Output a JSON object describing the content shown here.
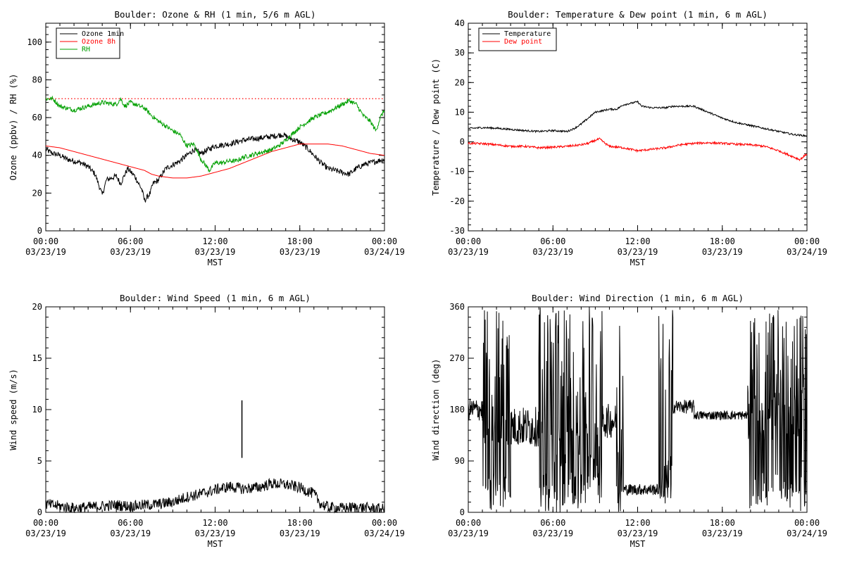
{
  "colors": {
    "ozone_1min": "#000000",
    "ozone_8h": "#ff0000",
    "rh": "#00a000",
    "temperature": "#000000",
    "dew_point": "#ff0000",
    "ref_line": "#ff0000"
  },
  "chart_data": [
    {
      "type": "line",
      "title": "Boulder: Ozone & RH (1 min, 5/6 m AGL)",
      "ylabel": "Ozone (ppbv) / RH (%)",
      "xlabel": "MST",
      "xlim_hours": [
        0,
        24
      ],
      "xticks": [
        [
          "00:00",
          "03/23/19"
        ],
        [
          "06:00",
          "03/23/19"
        ],
        [
          "12:00",
          "03/23/19"
        ],
        [
          "18:00",
          "03/23/19"
        ],
        [
          "00:00",
          "03/24/19"
        ]
      ],
      "ylim": [
        0,
        110
      ],
      "yticks": [
        0,
        20,
        40,
        60,
        80,
        100
      ],
      "reference_line": 70,
      "legend": {
        "placement": "top-left",
        "entries": [
          "Ozone 1min",
          "Ozone 8h",
          "RH"
        ]
      },
      "series": [
        {
          "name": "Ozone 1min",
          "color": "ozone_1min",
          "noise": 1.5,
          "points": [
            [
              0,
              43
            ],
            [
              0.5,
              41
            ],
            [
              1,
              40
            ],
            [
              1.5,
              38
            ],
            [
              2,
              37
            ],
            [
              2.5,
              36
            ],
            [
              3,
              34
            ],
            [
              3.5,
              30
            ],
            [
              4,
              19
            ],
            [
              4.3,
              27
            ],
            [
              5,
              29
            ],
            [
              5.3,
              25
            ],
            [
              5.8,
              33
            ],
            [
              6.3,
              29
            ],
            [
              6.8,
              22
            ],
            [
              7,
              16
            ],
            [
              7.4,
              20
            ],
            [
              7.6,
              25
            ],
            [
              8,
              27
            ],
            [
              8.5,
              33
            ],
            [
              9,
              35
            ],
            [
              9.5,
              37
            ],
            [
              10,
              40
            ],
            [
              10.5,
              43
            ],
            [
              11,
              41
            ],
            [
              11.5,
              43
            ],
            [
              12,
              45
            ],
            [
              13,
              46
            ],
            [
              14,
              48
            ],
            [
              15,
              49
            ],
            [
              16,
              50
            ],
            [
              16.8,
              51
            ],
            [
              17.3,
              49
            ],
            [
              18,
              47
            ],
            [
              18.5,
              44
            ],
            [
              19,
              40
            ],
            [
              19.5,
              36
            ],
            [
              20,
              33
            ],
            [
              20.5,
              32
            ],
            [
              21,
              31
            ],
            [
              21.5,
              30
            ],
            [
              22,
              33
            ],
            [
              22.5,
              35
            ],
            [
              23,
              36
            ],
            [
              23.5,
              37
            ],
            [
              24,
              38
            ]
          ]
        },
        {
          "name": "Ozone 8h",
          "color": "ozone_8h",
          "noise": 0,
          "points": [
            [
              0,
              45
            ],
            [
              1,
              44
            ],
            [
              2,
              42
            ],
            [
              3,
              40
            ],
            [
              4,
              38
            ],
            [
              5,
              36
            ],
            [
              6,
              34
            ],
            [
              7,
              32
            ],
            [
              7.5,
              30
            ],
            [
              8,
              29
            ],
            [
              9,
              28
            ],
            [
              10,
              28
            ],
            [
              11,
              29
            ],
            [
              12,
              31
            ],
            [
              13,
              33
            ],
            [
              14,
              36
            ],
            [
              15,
              39
            ],
            [
              16,
              42
            ],
            [
              17,
              44
            ],
            [
              18,
              46
            ],
            [
              19,
              46
            ],
            [
              20,
              46
            ],
            [
              21,
              45
            ],
            [
              22,
              43
            ],
            [
              23,
              41
            ],
            [
              24,
              40
            ]
          ]
        },
        {
          "name": "RH",
          "color": "rh",
          "noise": 1.2,
          "points": [
            [
              0,
              70
            ],
            [
              0.5,
              70
            ],
            [
              1,
              66
            ],
            [
              2,
              64
            ],
            [
              3,
              66
            ],
            [
              4,
              68
            ],
            [
              5,
              67
            ],
            [
              5.3,
              70
            ],
            [
              5.6,
              66
            ],
            [
              6,
              68
            ],
            [
              7,
              65
            ],
            [
              7.5,
              61
            ],
            [
              8,
              58
            ],
            [
              9,
              53
            ],
            [
              9.5,
              51
            ],
            [
              10,
              45
            ],
            [
              10.5,
              46
            ],
            [
              11,
              38
            ],
            [
              11.3,
              35
            ],
            [
              11.6,
              32
            ],
            [
              12,
              36
            ],
            [
              12.5,
              36
            ],
            [
              13,
              37
            ],
            [
              13.5,
              37
            ],
            [
              14,
              39
            ],
            [
              15,
              41
            ],
            [
              16,
              43
            ],
            [
              16.5,
              45
            ],
            [
              17,
              48
            ],
            [
              18,
              55
            ],
            [
              19,
              60
            ],
            [
              20,
              63
            ],
            [
              21,
              67
            ],
            [
              21.5,
              69
            ],
            [
              22,
              67
            ],
            [
              22.5,
              61
            ],
            [
              23,
              58
            ],
            [
              23.4,
              53
            ],
            [
              23.7,
              60
            ],
            [
              24,
              64
            ]
          ]
        }
      ]
    },
    {
      "type": "line",
      "title": "Boulder: Temperature & Dew point (1 min, 6 m AGL)",
      "ylabel": "Temperature / Dew point (C)",
      "xlabel": "MST",
      "xlim_hours": [
        0,
        24
      ],
      "xticks": [
        [
          "00:00",
          "03/23/19"
        ],
        [
          "06:00",
          "03/23/19"
        ],
        [
          "12:00",
          "03/23/19"
        ],
        [
          "18:00",
          "03/23/19"
        ],
        [
          "00:00",
          "03/24/19"
        ]
      ],
      "ylim": [
        -30,
        40
      ],
      "yticks": [
        -30,
        -20,
        -10,
        0,
        10,
        20,
        30,
        40
      ],
      "legend": {
        "placement": "top-left",
        "entries": [
          "Temperature",
          "Dew point"
        ]
      },
      "series": [
        {
          "name": "Temperature",
          "color": "temperature",
          "noise": 0.3,
          "points": [
            [
              0,
              4.5
            ],
            [
              1,
              4.8
            ],
            [
              2,
              4.6
            ],
            [
              3,
              4.2
            ],
            [
              4,
              3.8
            ],
            [
              5,
              3.5
            ],
            [
              6,
              3.8
            ],
            [
              7,
              3.5
            ],
            [
              7.5,
              4.5
            ],
            [
              8,
              6
            ],
            [
              8.5,
              8
            ],
            [
              9,
              10
            ],
            [
              10,
              11
            ],
            [
              10.5,
              11
            ],
            [
              11,
              12.5
            ],
            [
              11.5,
              13
            ],
            [
              12,
              13.5
            ],
            [
              12.3,
              12
            ],
            [
              13,
              11.5
            ],
            [
              14,
              11.5
            ],
            [
              14.5,
              12
            ],
            [
              15,
              12
            ],
            [
              16,
              12
            ],
            [
              16.5,
              11
            ],
            [
              17,
              10
            ],
            [
              18,
              8
            ],
            [
              19,
              6.5
            ],
            [
              20,
              5.5
            ],
            [
              21,
              4.5
            ],
            [
              22,
              3.5
            ],
            [
              23,
              2.5
            ],
            [
              24,
              2
            ]
          ]
        },
        {
          "name": "Dew point",
          "color": "dew_point",
          "noise": 0.35,
          "points": [
            [
              0,
              -0.5
            ],
            [
              1,
              -0.6
            ],
            [
              2,
              -1
            ],
            [
              3,
              -1.5
            ],
            [
              4,
              -1.5
            ],
            [
              5,
              -2
            ],
            [
              6,
              -1.8
            ],
            [
              7,
              -1.5
            ],
            [
              8,
              -1
            ],
            [
              8.5,
              -0.5
            ],
            [
              9,
              0.5
            ],
            [
              9.3,
              1
            ],
            [
              9.7,
              -0.5
            ],
            [
              10,
              -1.5
            ],
            [
              11,
              -2
            ],
            [
              11.5,
              -2.5
            ],
            [
              12,
              -3
            ],
            [
              13,
              -2.5
            ],
            [
              14,
              -2
            ],
            [
              15,
              -1
            ],
            [
              16,
              -0.5
            ],
            [
              17,
              -0.3
            ],
            [
              18,
              -0.5
            ],
            [
              19,
              -0.8
            ],
            [
              20,
              -1
            ],
            [
              21,
              -1.5
            ],
            [
              22,
              -3
            ],
            [
              23,
              -5
            ],
            [
              23.5,
              -6
            ],
            [
              24,
              -4
            ]
          ]
        }
      ]
    },
    {
      "type": "line",
      "title": "Boulder: Wind Speed (1 min, 6 m AGL)",
      "ylabel": "Wind speed (m/s)",
      "xlabel": "MST",
      "xlim_hours": [
        0,
        24
      ],
      "xticks": [
        [
          "00:00",
          "03/23/19"
        ],
        [
          "06:00",
          "03/23/19"
        ],
        [
          "12:00",
          "03/23/19"
        ],
        [
          "18:00",
          "03/23/19"
        ],
        [
          "00:00",
          "03/24/19"
        ]
      ],
      "ylim": [
        0,
        20
      ],
      "yticks": [
        0,
        5,
        10,
        15,
        20
      ],
      "spike": {
        "hour": 13.9,
        "from": 5.3,
        "to": 10.9
      },
      "series": [
        {
          "name": "",
          "color": "#000000",
          "noise": 0.55,
          "points": [
            [
              0,
              0.8
            ],
            [
              1,
              0.6
            ],
            [
              2,
              0.4
            ],
            [
              3,
              0.5
            ],
            [
              4,
              0.6
            ],
            [
              5,
              0.7
            ],
            [
              6,
              0.6
            ],
            [
              7,
              0.7
            ],
            [
              8,
              0.8
            ],
            [
              9,
              1.0
            ],
            [
              10,
              1.5
            ],
            [
              11,
              1.8
            ],
            [
              12,
              2.2
            ],
            [
              13,
              2.5
            ],
            [
              14,
              2.3
            ],
            [
              15,
              2.4
            ],
            [
              16,
              2.8
            ],
            [
              17,
              2.7
            ],
            [
              18,
              2.4
            ],
            [
              19,
              1.8
            ],
            [
              19.5,
              0.8
            ],
            [
              20,
              0.5
            ],
            [
              21,
              0.4
            ],
            [
              22,
              0.5
            ],
            [
              23,
              0.4
            ],
            [
              24,
              0.3
            ]
          ]
        }
      ]
    },
    {
      "type": "line",
      "title": "Boulder: Wind Direction (1 min, 6 m AGL)",
      "ylabel": "Wind direction (deg)",
      "xlabel": "MST",
      "xlim_hours": [
        0,
        24
      ],
      "xticks": [
        [
          "00:00",
          "03/23/19"
        ],
        [
          "06:00",
          "03/23/19"
        ],
        [
          "12:00",
          "03/23/19"
        ],
        [
          "18:00",
          "03/23/19"
        ],
        [
          "00:00",
          "03/24/19"
        ]
      ],
      "ylim": [
        0,
        360
      ],
      "yticks": [
        0,
        90,
        180,
        270,
        360
      ],
      "series": [
        {
          "name": "",
          "color": "#000000",
          "segments": [
            {
              "from": 0,
              "to": 1,
              "mode": "band",
              "center": 180,
              "spread": 20
            },
            {
              "from": 1,
              "to": 3,
              "mode": "spiky",
              "center": 150
            },
            {
              "from": 3,
              "to": 5,
              "mode": "band",
              "center": 150,
              "spread": 35
            },
            {
              "from": 5,
              "to": 9.5,
              "mode": "spiky",
              "center": 120
            },
            {
              "from": 9.5,
              "to": 10.5,
              "mode": "band",
              "center": 160,
              "spread": 30
            },
            {
              "from": 10.5,
              "to": 11,
              "mode": "spiky",
              "center": 120
            },
            {
              "from": 11,
              "to": 13.5,
              "mode": "band",
              "center": 40,
              "spread": 10
            },
            {
              "from": 13.5,
              "to": 14.5,
              "mode": "spiky",
              "center": 60
            },
            {
              "from": 14.5,
              "to": 16,
              "mode": "band",
              "center": 185,
              "spread": 12
            },
            {
              "from": 16,
              "to": 19.8,
              "mode": "band",
              "center": 170,
              "spread": 8
            },
            {
              "from": 19.8,
              "to": 24,
              "mode": "spiky",
              "center": 160
            }
          ]
        }
      ]
    }
  ]
}
